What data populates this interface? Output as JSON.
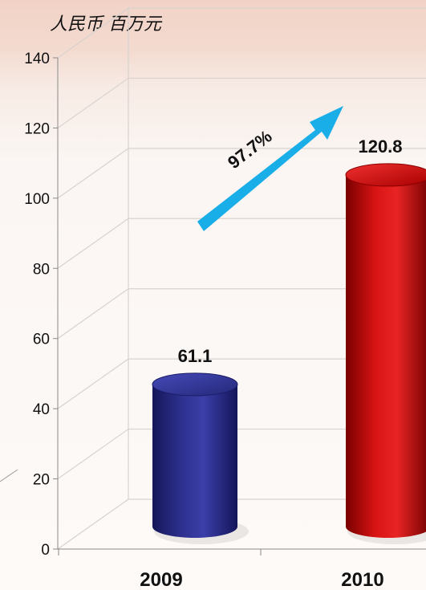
{
  "chart_data": {
    "type": "bar",
    "title": "人民币 百万元",
    "categories": [
      "2009",
      "2010"
    ],
    "values": [
      61.1,
      120.8
    ],
    "data_labels": [
      "61.1",
      "120.8"
    ],
    "ylim": [
      0,
      140
    ],
    "yticks": [
      0,
      20,
      40,
      60,
      80,
      100,
      120,
      140
    ],
    "growth_label": "97.7%",
    "bar_colors": [
      "#2a2c7e",
      "#d01212"
    ],
    "arrow_color": "#19aee8",
    "grid": true,
    "xlabel": "",
    "ylabel": ""
  }
}
